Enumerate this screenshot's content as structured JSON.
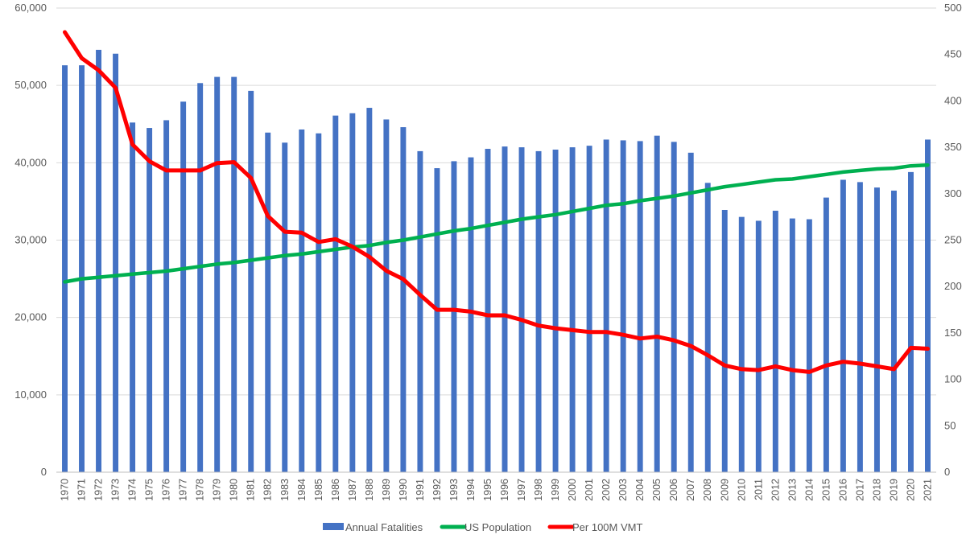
{
  "chart_data": {
    "type": "bar",
    "title": "",
    "xlabel": "",
    "ylabel": "",
    "categories": [
      "1970",
      "1971",
      "1972",
      "1973",
      "1974",
      "1975",
      "1976",
      "1977",
      "1978",
      "1979",
      "1980",
      "1981",
      "1982",
      "1983",
      "1984",
      "1985",
      "1986",
      "1987",
      "1988",
      "1989",
      "1990",
      "1991",
      "1992",
      "1993",
      "1994",
      "1995",
      "1996",
      "1997",
      "1998",
      "1999",
      "2000",
      "2001",
      "2002",
      "2003",
      "2004",
      "2005",
      "2006",
      "2007",
      "2008",
      "2009",
      "2010",
      "2011",
      "2012",
      "2013",
      "2014",
      "2015",
      "2016",
      "2017",
      "2018",
      "2019",
      "2020",
      "2021"
    ],
    "left_axis": {
      "ylim": [
        0,
        60000
      ],
      "ticks": [
        "0",
        "10,000",
        "20,000",
        "30,000",
        "40,000",
        "50,000",
        "60,000"
      ]
    },
    "right_axis": {
      "ylim": [
        0,
        500
      ],
      "ticks": [
        "0",
        "50",
        "100",
        "150",
        "200",
        "250",
        "300",
        "350",
        "400",
        "450",
        "500"
      ]
    },
    "grid": true,
    "legend_position": "bottom",
    "series": [
      {
        "name": "Annual Fatalities",
        "type": "bar",
        "axis": "left",
        "color": "#4472c4",
        "values": [
          52600,
          52600,
          54600,
          54100,
          45200,
          44500,
          45500,
          47900,
          50300,
          51100,
          51100,
          49300,
          43900,
          42600,
          44300,
          43800,
          46100,
          46400,
          47100,
          45600,
          44600,
          41500,
          39300,
          40200,
          40700,
          41800,
          42100,
          42000,
          41500,
          41700,
          42000,
          42200,
          43000,
          42900,
          42800,
          43500,
          42700,
          41300,
          37400,
          33900,
          33000,
          32500,
          33800,
          32800,
          32700,
          35500,
          37800,
          37500,
          36800,
          36400,
          38800,
          43000
        ]
      },
      {
        "name": "US Population",
        "type": "line",
        "axis": "left",
        "color": "#00b050",
        "values": [
          24600,
          25000,
          25200,
          25400,
          25600,
          25800,
          26000,
          26300,
          26600,
          26900,
          27100,
          27400,
          27700,
          28000,
          28200,
          28500,
          28800,
          29100,
          29300,
          29700,
          30000,
          30400,
          30800,
          31200,
          31500,
          31900,
          32300,
          32700,
          33000,
          33300,
          33700,
          34100,
          34500,
          34700,
          35100,
          35400,
          35700,
          36100,
          36500,
          36900,
          37200,
          37500,
          37800,
          37900,
          38200,
          38500,
          38800,
          39000,
          39200,
          39300,
          39600,
          39700
        ]
      },
      {
        "name": "Per 100M VMT",
        "type": "line",
        "axis": "right",
        "color": "#ff0000",
        "values": [
          474,
          446,
          433,
          414,
          353,
          335,
          325,
          325,
          325,
          333,
          334,
          317,
          276,
          259,
          258,
          248,
          251,
          243,
          232,
          217,
          208,
          191,
          175,
          175,
          173,
          169,
          169,
          164,
          158,
          155,
          153,
          151,
          151,
          148,
          144,
          146,
          142,
          136,
          126,
          115,
          111,
          110,
          114,
          110,
          108,
          115,
          119,
          117,
          114,
          111,
          134,
          133
        ]
      }
    ]
  }
}
